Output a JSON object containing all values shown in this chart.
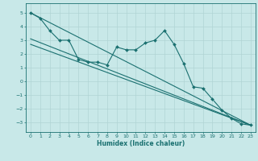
{
  "xlabel": "Humidex (Indice chaleur)",
  "background_color": "#c8e8e8",
  "line_color": "#1a7070",
  "grid_color": "#b0d4d4",
  "xlim": [
    -0.5,
    23.5
  ],
  "ylim": [
    -3.7,
    5.7
  ],
  "xticks": [
    0,
    1,
    2,
    3,
    4,
    5,
    6,
    7,
    8,
    9,
    10,
    11,
    12,
    13,
    14,
    15,
    16,
    17,
    18,
    19,
    20,
    21,
    22,
    23
  ],
  "yticks": [
    -3,
    -2,
    -1,
    0,
    1,
    2,
    3,
    4,
    5
  ],
  "data_x": [
    0,
    1,
    2,
    3,
    4,
    5,
    6,
    7,
    8,
    9,
    10,
    11,
    12,
    13,
    14,
    15,
    16,
    17,
    18,
    19,
    20,
    21,
    22,
    23
  ],
  "data_y": [
    5.0,
    4.6,
    3.7,
    3.0,
    3.0,
    1.6,
    1.4,
    1.4,
    1.2,
    2.5,
    2.3,
    2.3,
    2.8,
    3.0,
    3.7,
    2.7,
    1.3,
    -0.4,
    -0.5,
    -1.3,
    -2.1,
    -2.7,
    -3.1,
    -3.2
  ],
  "trend1_x": [
    0,
    23
  ],
  "trend1_y": [
    5.0,
    -3.2
  ],
  "trend2_x": [
    0,
    23
  ],
  "trend2_y": [
    3.1,
    -3.2
  ],
  "trend3_x": [
    0,
    23
  ],
  "trend3_y": [
    2.7,
    -3.2
  ],
  "marker_size": 2.0,
  "line_width": 0.8,
  "tick_fontsize": 4.5,
  "xlabel_fontsize": 5.5
}
